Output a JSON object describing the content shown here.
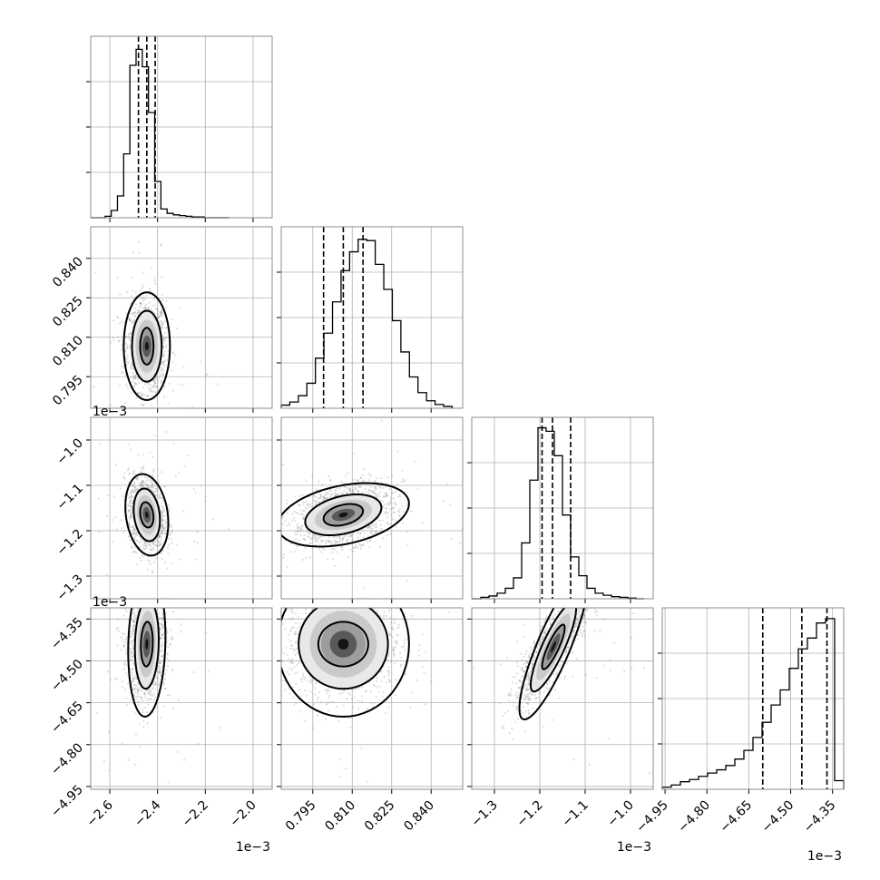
{
  "chart_data": {
    "type": "corner",
    "params": [
      {
        "range": [
          -2.68,
          -1.92
        ],
        "ticks": [
          -2.6,
          -2.4,
          -2.2,
          -2.0
        ],
        "tick_labels": [
          "−2.6",
          "−2.4",
          "−2.2",
          "−2.0"
        ],
        "offset": "1e−3"
      },
      {
        "range": [
          0.783,
          0.852
        ],
        "ticks": [
          0.795,
          0.81,
          0.825,
          0.84
        ],
        "tick_labels": [
          "0.795",
          "0.810",
          "0.825",
          "0.840"
        ],
        "offset": ""
      },
      {
        "range": [
          -1.35,
          -0.95
        ],
        "ticks": [
          -1.3,
          -1.2,
          -1.1,
          -1.0
        ],
        "tick_labels": [
          "−1.3",
          "−1.2",
          "−1.1",
          "−1.0"
        ],
        "offset": "1e−3"
      },
      {
        "range": [
          -4.96,
          -4.31
        ],
        "ticks": [
          -4.95,
          -4.8,
          -4.65,
          -4.5,
          -4.35
        ],
        "tick_labels": [
          "−4.95",
          "−4.80",
          "−4.65",
          "−4.50",
          "−4.35"
        ],
        "offset": "1e−3"
      }
    ],
    "histograms": [
      {
        "param": 0,
        "edges_min": -2.62,
        "edges_max": -2.1,
        "counts": [
          0.02,
          0.1,
          0.3,
          0.88,
          2.1,
          2.32,
          2.08,
          1.45,
          0.5,
          0.12,
          0.06,
          0.04,
          0.03,
          0.02,
          0.01,
          0.01,
          0.0,
          0.0,
          0.0,
          0.0
        ],
        "ymax": 2.5,
        "quantiles": [
          -2.48,
          -2.445,
          -2.41
        ]
      },
      {
        "param": 1,
        "edges_min": 0.783,
        "edges_max": 0.848,
        "counts": [
          0.05,
          0.1,
          0.2,
          0.4,
          0.8,
          1.2,
          1.7,
          2.2,
          2.5,
          2.7,
          2.68,
          2.3,
          1.9,
          1.4,
          0.9,
          0.5,
          0.25,
          0.12,
          0.06,
          0.03
        ],
        "ymax": 2.9,
        "quantiles": [
          0.7991,
          0.8066,
          0.8141
        ]
      },
      {
        "param": 2,
        "edges_min": -1.33,
        "edges_max": -0.97,
        "counts": [
          0.02,
          0.04,
          0.08,
          0.15,
          0.3,
          0.8,
          1.7,
          2.45,
          2.4,
          2.05,
          1.2,
          0.6,
          0.33,
          0.15,
          0.08,
          0.05,
          0.03,
          0.02,
          0.01,
          0.0
        ],
        "ymax": 2.6,
        "quantiles": [
          -1.195,
          -1.172,
          -1.132
        ]
      },
      {
        "param": 3,
        "edges_min": -4.96,
        "edges_max": -4.31,
        "counts": [
          0.01,
          0.02,
          0.035,
          0.045,
          0.06,
          0.075,
          0.09,
          0.11,
          0.14,
          0.18,
          0.24,
          0.31,
          0.39,
          0.46,
          0.56,
          0.65,
          0.7,
          0.77,
          0.79,
          0.04
        ],
        "ymax": 0.84,
        "quantiles": [
          -4.6,
          -4.46,
          -4.37
        ]
      }
    ],
    "scatter_panels": [
      {
        "x_param": 0,
        "y_param": 1,
        "center": [
          -2.445,
          0.8066
        ],
        "sigma": [
          0.04,
          0.0085
        ],
        "rho": 0.0,
        "contours": [
          [
            0.028,
            0.007
          ],
          [
            0.062,
            0.0135
          ],
          [
            0.097,
            0.0205
          ]
        ]
      },
      {
        "x_param": 0,
        "y_param": 2,
        "center": [
          -2.445,
          -1.165
        ],
        "sigma": [
          0.038,
          0.04
        ],
        "rho": -0.2,
        "contours": [
          [
            0.028,
            0.028
          ],
          [
            0.055,
            0.058
          ],
          [
            0.09,
            0.09
          ]
        ]
      },
      {
        "x_param": 1,
        "y_param": 2,
        "center": [
          0.8066,
          -1.165
        ],
        "sigma": [
          0.0095,
          0.035
        ],
        "rho": 0.35,
        "contours": [
          [
            0.0075,
            0.024
          ],
          [
            0.0145,
            0.045
          ],
          [
            0.025,
            0.07
          ]
        ]
      },
      {
        "x_param": 0,
        "y_param": 3,
        "center": [
          -2.445,
          -4.44
        ],
        "sigma": [
          0.04,
          0.1
        ],
        "rho": 0.1,
        "contours": [
          [
            0.025,
            0.08
          ],
          [
            0.05,
            0.16
          ],
          [
            0.078,
            0.26
          ]
        ]
      },
      {
        "x_param": 1,
        "y_param": 3,
        "center": [
          0.8066,
          -4.44
        ],
        "sigma": [
          0.011,
          0.1
        ],
        "rho": 0.0,
        "contours": [
          [
            0.0095,
            0.08
          ],
          [
            0.017,
            0.16
          ],
          [
            0.025,
            0.26
          ]
        ]
      },
      {
        "x_param": 2,
        "y_param": 3,
        "center": [
          -1.17,
          -4.45
        ],
        "sigma": [
          0.04,
          0.1
        ],
        "rho": 0.85,
        "contours": [
          [
            0.025,
            0.08
          ],
          [
            0.05,
            0.16
          ],
          [
            0.075,
            0.26
          ]
        ]
      }
    ]
  }
}
